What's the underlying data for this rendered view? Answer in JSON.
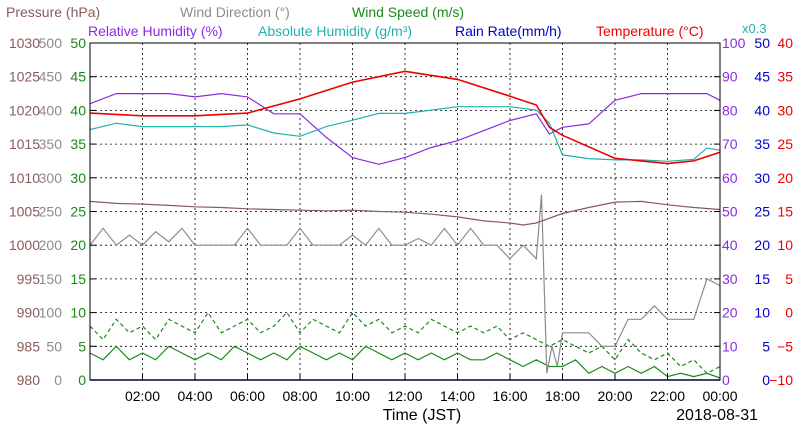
{
  "chart_data": {
    "type": "line",
    "date": "2018-08-31",
    "x_label": "Time (JST)",
    "x_ticks": [
      "02:00",
      "04:00",
      "06:00",
      "08:00",
      "10:00",
      "12:00",
      "14:00",
      "16:00",
      "18:00",
      "20:00",
      "22:00",
      "00:00"
    ],
    "x_range_hours": [
      0,
      24
    ],
    "legend": [
      {
        "key": "pressure",
        "label": "Pressure (hPa)",
        "color": "#8b5a5a"
      },
      {
        "key": "wind_dir",
        "label": "Wind Direction (°)",
        "color": "#8c8c8c"
      },
      {
        "key": "wind_speed",
        "label": "Wind Speed (m/s)",
        "color": "#1a8a1a"
      },
      {
        "key": "rel_hum",
        "label": "Relative Humidity (%)",
        "color": "#8a2be2"
      },
      {
        "key": "abs_hum",
        "label": "Absolute Humidity (g/m³)",
        "color": "#20b2aa"
      },
      {
        "key": "rain",
        "label": "Rain Rate(mm/h)",
        "color": "#0000cc"
      },
      {
        "key": "temp",
        "label": "Temperature (°C)",
        "color": "#ee0000"
      }
    ],
    "abs_hum_scale_note": "x0.3",
    "axes": {
      "pressure": {
        "ticks": [
          "1030",
          "1025",
          "1020",
          "1015",
          "1010",
          "1005",
          "1000",
          "995",
          "990",
          "985",
          "980"
        ],
        "range": [
          980,
          1030
        ],
        "color": "#8b5a5a"
      },
      "wind_dir": {
        "ticks": [
          "500",
          "450",
          "400",
          "350",
          "300",
          "250",
          "200",
          "150",
          "100",
          "50",
          "0"
        ],
        "range": [
          0,
          500
        ],
        "color": "#8c8c8c"
      },
      "wind_speed": {
        "ticks": [
          "50",
          "45",
          "40",
          "35",
          "30",
          "25",
          "20",
          "15",
          "10",
          "5",
          "0"
        ],
        "range": [
          0,
          50
        ],
        "color": "#1a8a1a"
      },
      "rel_hum": {
        "ticks": [
          "100",
          "90",
          "80",
          "70",
          "60",
          "50",
          "40",
          "30",
          "20",
          "10",
          "0"
        ],
        "range": [
          0,
          100
        ],
        "color": "#8a2be2"
      },
      "rain": {
        "ticks": [
          "50",
          "45",
          "40",
          "35",
          "30",
          "25",
          "20",
          "15",
          "10",
          "5",
          "0"
        ],
        "range": [
          0,
          50
        ],
        "color": "#0000cc"
      },
      "temp": {
        "ticks": [
          "40",
          "35",
          "30",
          "25",
          "20",
          "15",
          "10",
          "5",
          "0",
          "−5",
          "−10"
        ],
        "range": [
          -10,
          40
        ],
        "color": "#ee0000"
      }
    },
    "series": {
      "temperature": {
        "x": [
          0,
          2,
          4,
          6,
          8,
          10,
          12,
          14,
          16,
          17,
          17.5,
          18,
          19,
          20,
          21,
          22,
          23,
          24
        ],
        "y": [
          29.6,
          29.2,
          29.2,
          29.6,
          31.7,
          34.2,
          35.8,
          34.6,
          32.1,
          30.8,
          27.5,
          26.3,
          24.6,
          22.9,
          22.5,
          22.1,
          22.5,
          23.8
        ]
      },
      "abs_humidity_x03": {
        "x": [
          0,
          1,
          2,
          3,
          4,
          5,
          6,
          7,
          8,
          9,
          10,
          11,
          12,
          13,
          14,
          15,
          16,
          17,
          17.5,
          18,
          19,
          20,
          21,
          22,
          23,
          23.5,
          24
        ],
        "y": [
          74.3,
          76.2,
          75.2,
          75.2,
          75.2,
          75.2,
          75.7,
          73.3,
          72.3,
          75.2,
          77.1,
          79.1,
          79.1,
          80.1,
          81.1,
          81.1,
          81.1,
          80.1,
          76.2,
          66.8,
          65.7,
          65.3,
          65.3,
          64.9,
          65.5,
          68.8,
          68.2
        ]
      },
      "relative_humidity": {
        "x": [
          0,
          1,
          2,
          3,
          4,
          5,
          6,
          7,
          8,
          9,
          10,
          11,
          12,
          13,
          14,
          15,
          16,
          17,
          17.5,
          18,
          19,
          20,
          21,
          22,
          23,
          23.5,
          24
        ],
        "y": [
          82,
          85,
          85,
          85,
          84,
          85,
          84,
          79,
          79,
          72,
          66,
          64,
          66,
          69,
          71,
          74,
          77,
          79,
          73,
          75,
          76,
          83,
          85,
          85,
          85,
          85,
          83
        ]
      },
      "pressure": {
        "x": [
          0,
          1,
          2,
          3,
          4,
          5,
          6,
          7,
          8,
          9,
          10,
          11,
          12,
          13,
          14,
          15,
          16,
          16.5,
          17,
          18,
          19,
          20,
          21,
          22,
          23,
          24
        ],
        "y": [
          1006.5,
          1006.2,
          1006.1,
          1005.9,
          1005.7,
          1005.6,
          1005.4,
          1005.3,
          1005.2,
          1005.1,
          1005.2,
          1005.0,
          1004.9,
          1004.6,
          1004.2,
          1003.6,
          1003.3,
          1003.0,
          1003.3,
          1004.7,
          1005.6,
          1006.4,
          1006.5,
          1006.0,
          1005.6,
          1005.3
        ]
      },
      "wind_direction": {
        "x": [
          0,
          0.5,
          1,
          1.5,
          2,
          2.5,
          3,
          3.5,
          4,
          4.5,
          5,
          5.5,
          6,
          6.5,
          7,
          7.5,
          8,
          8.5,
          9,
          9.5,
          10,
          10.5,
          11,
          11.5,
          12,
          12.5,
          13,
          13.5,
          14,
          14.5,
          15,
          15.5,
          16,
          16.5,
          17,
          17.2,
          17.4,
          17.6,
          17.8,
          18,
          18.5,
          19,
          19.5,
          20,
          20.5,
          21,
          21.5,
          22,
          22.5,
          23,
          23.5,
          24
        ],
        "y": [
          200,
          225,
          200,
          215,
          200,
          220,
          205,
          225,
          200,
          200,
          200,
          200,
          225,
          200,
          200,
          200,
          225,
          200,
          200,
          200,
          215,
          200,
          225,
          200,
          200,
          210,
          200,
          225,
          200,
          225,
          200,
          200,
          180,
          200,
          180,
          275,
          10,
          50,
          20,
          70,
          70,
          70,
          50,
          50,
          90,
          90,
          110,
          90,
          90,
          90,
          150,
          140
        ]
      },
      "wind_speed_mean": {
        "x": [
          0,
          0.5,
          1,
          1.5,
          2,
          2.5,
          3,
          3.5,
          4,
          4.5,
          5,
          5.5,
          6,
          6.5,
          7,
          7.5,
          8,
          8.5,
          9,
          9.5,
          10,
          10.5,
          11,
          11.5,
          12,
          12.5,
          13,
          13.5,
          14,
          14.5,
          15,
          15.5,
          16,
          16.5,
          17,
          17.5,
          18,
          18.5,
          19,
          19.5,
          20,
          20.5,
          21,
          21.5,
          22,
          22.5,
          23,
          23.5,
          24
        ],
        "y": [
          4,
          3,
          5,
          3,
          4,
          3,
          5,
          4,
          3,
          4,
          3,
          5,
          4,
          3,
          4,
          3,
          5,
          4,
          3,
          4,
          3,
          5,
          4,
          3,
          4,
          3,
          4,
          3,
          4,
          3,
          3,
          4,
          3,
          2,
          3,
          2,
          2,
          3,
          1,
          2,
          1,
          2,
          1,
          2,
          0.5,
          1,
          0.5,
          1,
          0.3
        ]
      },
      "wind_speed_gust": {
        "x": [
          0,
          0.5,
          1,
          1.5,
          2,
          2.5,
          3,
          3.5,
          4,
          4.5,
          5,
          5.5,
          6,
          6.5,
          7,
          7.5,
          8,
          8.5,
          9,
          9.5,
          10,
          10.5,
          11,
          11.5,
          12,
          12.5,
          13,
          13.5,
          14,
          14.5,
          15,
          15.5,
          16,
          16.5,
          17,
          17.5,
          18,
          18.5,
          19,
          19.5,
          20,
          20.5,
          21,
          21.5,
          22,
          22.5,
          23,
          23.5,
          24
        ],
        "y": [
          8,
          6,
          9,
          7,
          8,
          6,
          9,
          8,
          7,
          10,
          7,
          8,
          9,
          7,
          8,
          10,
          7,
          9,
          8,
          7,
          10,
          8,
          9,
          7,
          8,
          7,
          9,
          8,
          7,
          8,
          7,
          8,
          6,
          7,
          6,
          5,
          6,
          5,
          4,
          5,
          3,
          6,
          4,
          3,
          4,
          2,
          3,
          1,
          2
        ]
      },
      "rain_rate": {
        "x": [
          0,
          24
        ],
        "y": [
          0,
          0
        ]
      }
    }
  }
}
